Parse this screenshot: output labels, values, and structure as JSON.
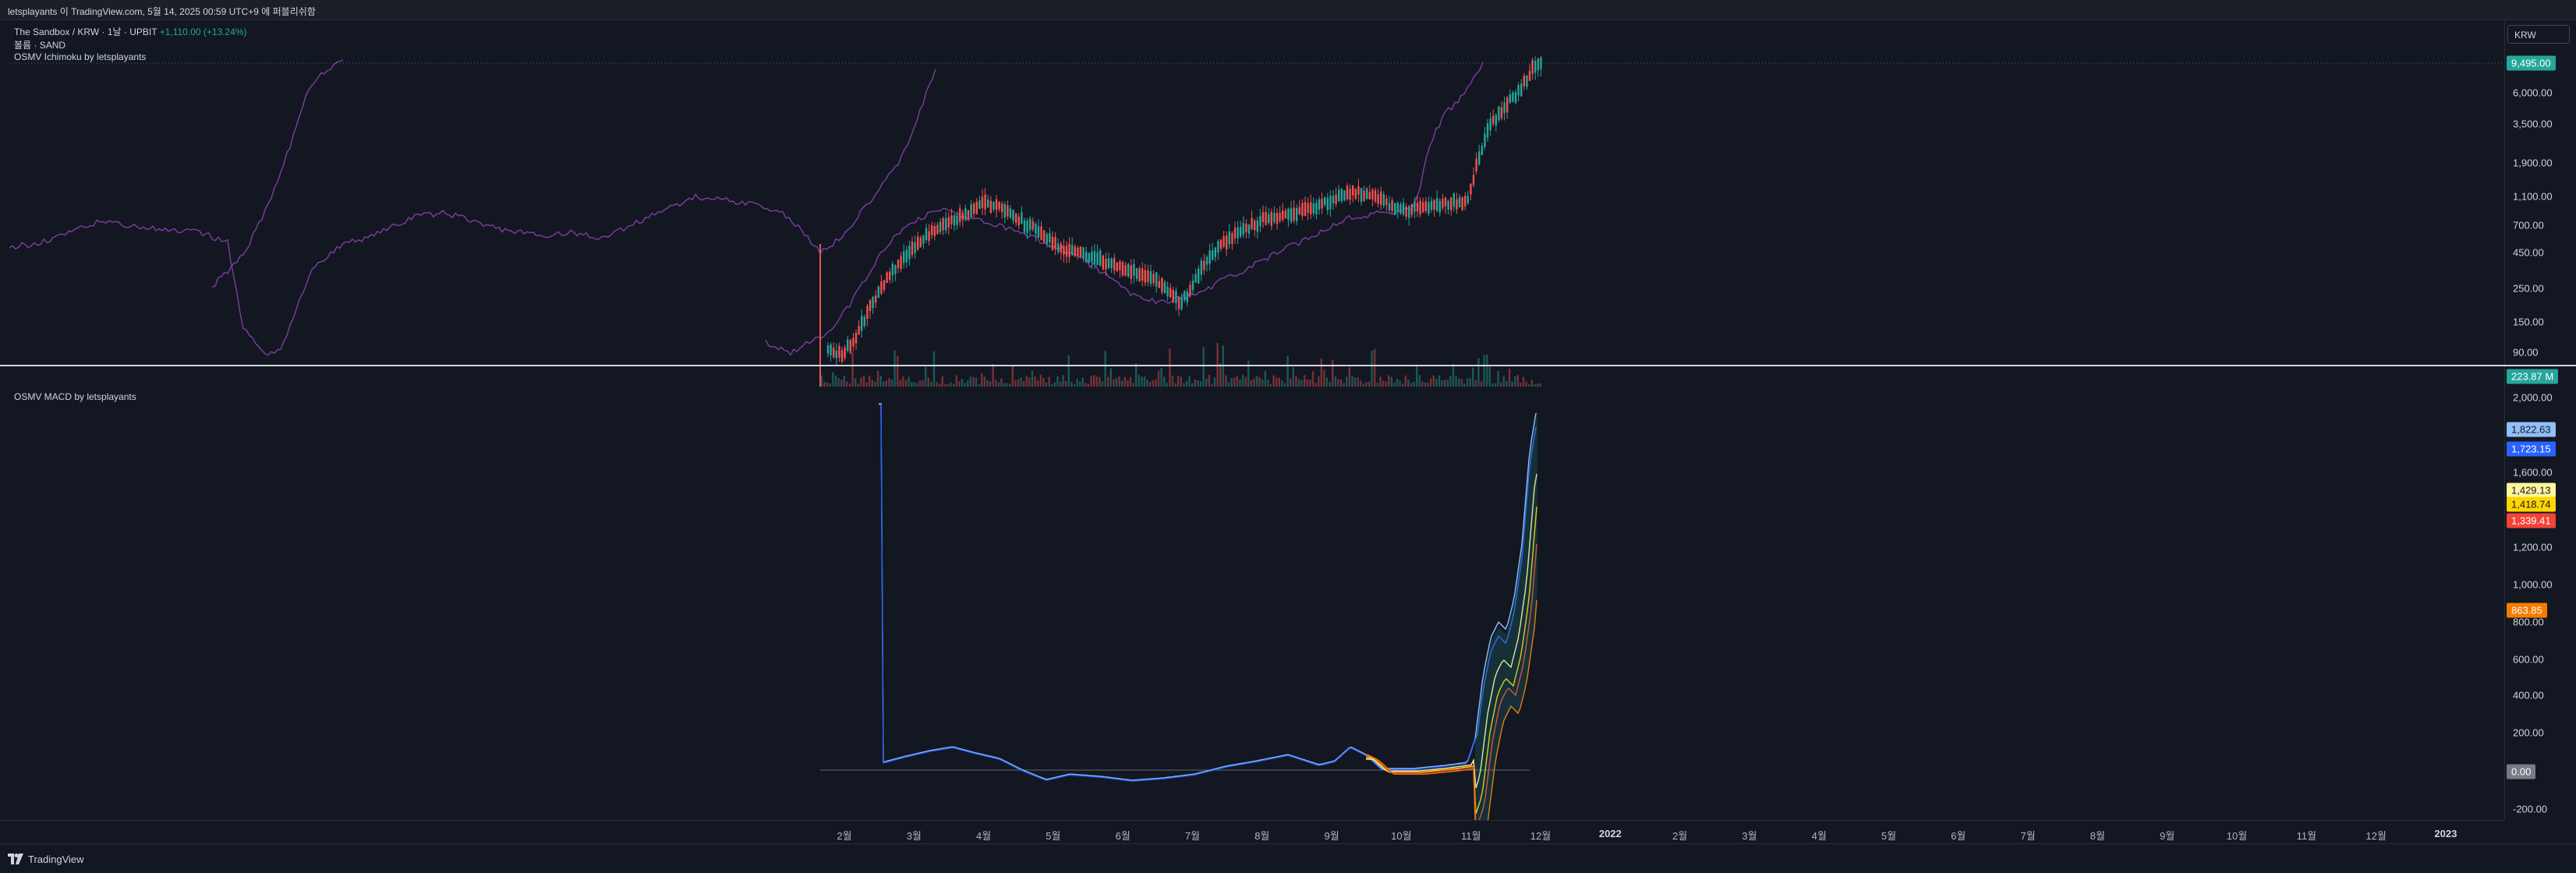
{
  "header": {
    "attribution": "letsplayants 이 TradingView.com, 5월 14, 2025 00:59 UTC+9 에 퍼블리쉬함"
  },
  "main_pane": {
    "legend_title": "The Sandbox / KRW · 1날 · UPBIT",
    "legend_change": "+1,110.00 (+13.24%)",
    "legend_volume": "볼륨 · SAND",
    "legend_indicator": "OSMV Ichimoku by letsplayants"
  },
  "macd_pane": {
    "legend_indicator": "OSMV MACD by letsplayants"
  },
  "currency_button": "KRW",
  "price_axis_main": {
    "ticks": [
      "6,000.00",
      "3,500.00",
      "1,900.00",
      "1,100.00",
      "700.00",
      "450.00",
      "250.00",
      "150.00",
      "90.00"
    ],
    "last_price": "9,495.00",
    "volume_label": "223.87 M"
  },
  "price_axis_macd": {
    "ticks": [
      "2,000.00",
      "1,600.00",
      "1,200.00",
      "1,000.00",
      "800.00",
      "600.00",
      "400.00",
      "200.00",
      "-200.00"
    ],
    "pills": [
      {
        "text": "1,822.63",
        "color": "#90bff9"
      },
      {
        "text": "1,723.15",
        "color": "#2962ff"
      },
      {
        "text": "1,429.13",
        "color": "#fff59d"
      },
      {
        "text": "1,418.74",
        "color": "#ffd600"
      },
      {
        "text": "1,339.41",
        "color": "#f44336"
      },
      {
        "text": "863.85",
        "color": "#f57c00"
      },
      {
        "text": "0.00",
        "color": "#787b86"
      }
    ]
  },
  "time_axis": {
    "ticks": [
      {
        "text": "2월",
        "year": false
      },
      {
        "text": "3월",
        "year": false
      },
      {
        "text": "4월",
        "year": false
      },
      {
        "text": "5월",
        "year": false
      },
      {
        "text": "6월",
        "year": false
      },
      {
        "text": "7월",
        "year": false
      },
      {
        "text": "8월",
        "year": false
      },
      {
        "text": "9월",
        "year": false
      },
      {
        "text": "10월",
        "year": false
      },
      {
        "text": "11월",
        "year": false
      },
      {
        "text": "12월",
        "year": false
      },
      {
        "text": "2022",
        "year": true
      },
      {
        "text": "2월",
        "year": false
      },
      {
        "text": "3월",
        "year": false
      },
      {
        "text": "4월",
        "year": false
      },
      {
        "text": "5월",
        "year": false
      },
      {
        "text": "6월",
        "year": false
      },
      {
        "text": "7월",
        "year": false
      },
      {
        "text": "8월",
        "year": false
      },
      {
        "text": "9월",
        "year": false
      },
      {
        "text": "10월",
        "year": false
      },
      {
        "text": "11월",
        "year": false
      },
      {
        "text": "12월",
        "year": false
      },
      {
        "text": "2023",
        "year": true
      }
    ]
  },
  "footer": {
    "brand": "TradingView"
  },
  "colors": {
    "background": "#131722",
    "bull": "#26a69a",
    "bear": "#ef5350",
    "ichimoku": "#7e3ea0",
    "macd_fast": "#2962ff",
    "macd_signal": "#90bff9"
  },
  "icons": {
    "logo": "tradingview-logo-icon"
  }
}
